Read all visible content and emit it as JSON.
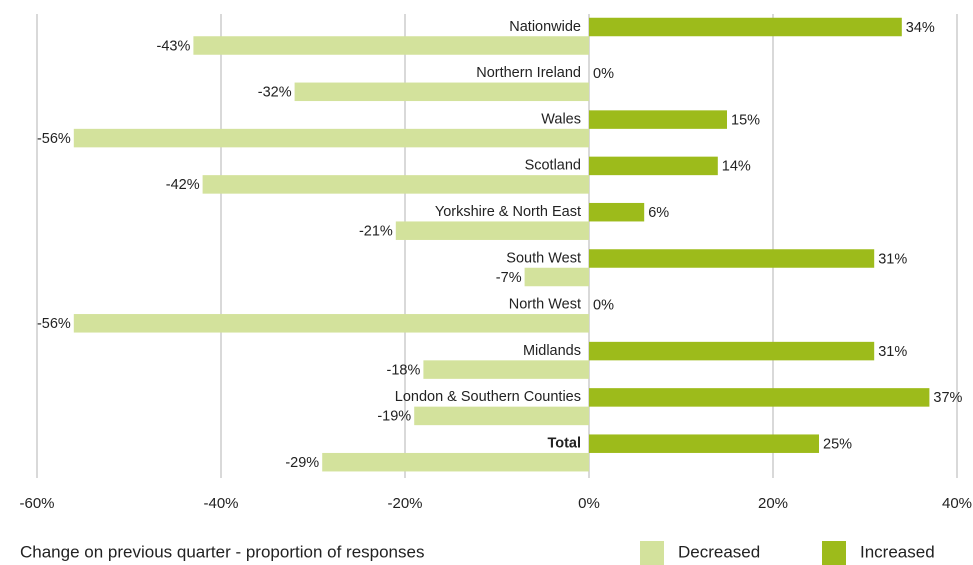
{
  "chart_data": {
    "type": "hbar",
    "title": "Change on previous quarter - proportion of responses",
    "categories": [
      "Nationwide",
      "Northern Ireland",
      "Wales",
      "Scotland",
      "Yorkshire & North East",
      "South West",
      "North West",
      "Midlands",
      "London & Southern Counties",
      "Total"
    ],
    "series": [
      {
        "name": "Decreased",
        "color": "#d3e29c",
        "values": [
          -43,
          -32,
          -56,
          -42,
          -21,
          -7,
          -56,
          -18,
          -19,
          -29
        ],
        "value_labels": [
          "-43%",
          "-32%",
          "-56%",
          "-42%",
          "-21%",
          "-7%",
          "-56%",
          "-18%",
          "-19%",
          "-29%"
        ]
      },
      {
        "name": "Increased",
        "color": "#9dbb1b",
        "values": [
          34,
          0,
          15,
          14,
          6,
          31,
          0,
          31,
          37,
          25
        ],
        "value_labels": [
          "34%",
          "0%",
          "15%",
          "14%",
          "6%",
          "31%",
          "0%",
          "31%",
          "37%",
          "25%"
        ]
      }
    ],
    "xlim": [
      -60,
      40
    ],
    "xticks": [
      {
        "value": -60,
        "label": "-60%"
      },
      {
        "value": -40,
        "label": "-40%"
      },
      {
        "value": -20,
        "label": "-20%"
      },
      {
        "value": 0,
        "label": "0%"
      },
      {
        "value": 20,
        "label": "20%"
      },
      {
        "value": 40,
        "label": "40%"
      }
    ],
    "grid": true,
    "legend": "bottom-right"
  }
}
